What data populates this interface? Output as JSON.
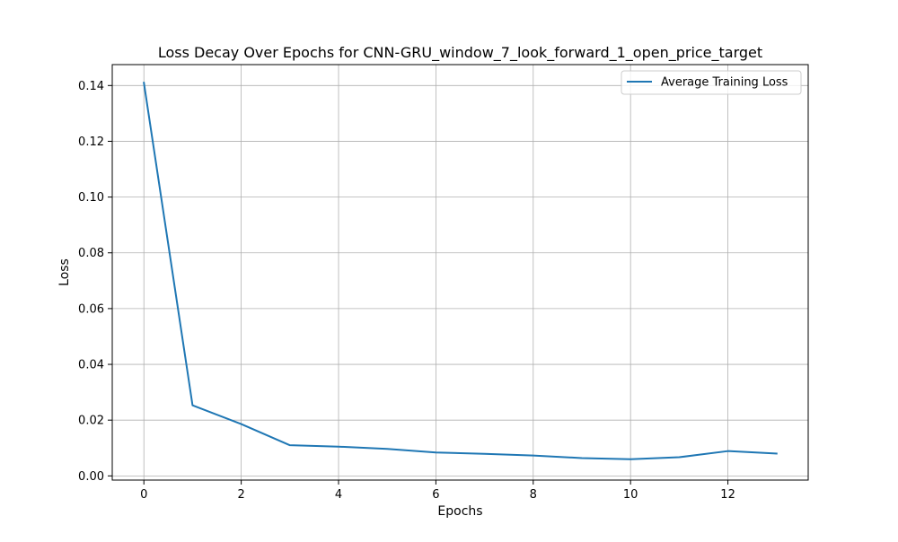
{
  "chart_data": {
    "type": "line",
    "title": "Loss Decay Over Epochs for CNN-GRU_window_7_look_forward_1_open_price_target",
    "xlabel": "Epochs",
    "ylabel": "Loss",
    "xlim": [
      -0.65,
      13.65
    ],
    "ylim": [
      -0.0015,
      0.1475
    ],
    "xticks": [
      0,
      2,
      4,
      6,
      8,
      10,
      12
    ],
    "xtick_labels": [
      "0",
      "2",
      "4",
      "6",
      "8",
      "10",
      "12"
    ],
    "yticks": [
      0.0,
      0.02,
      0.04,
      0.06,
      0.08,
      0.1,
      0.12,
      0.14
    ],
    "ytick_labels": [
      "0.00",
      "0.02",
      "0.04",
      "0.06",
      "0.08",
      "0.10",
      "0.12",
      "0.14"
    ],
    "grid": true,
    "legend_position": "top-right",
    "series": [
      {
        "name": "Average Training Loss",
        "color": "#1f77b4",
        "x": [
          0,
          1,
          2,
          3,
          4,
          5,
          6,
          7,
          8,
          9,
          10,
          11,
          12,
          13
        ],
        "values": [
          0.141,
          0.0253,
          0.0186,
          0.011,
          0.0105,
          0.0097,
          0.0084,
          0.0079,
          0.0073,
          0.0064,
          0.006,
          0.0067,
          0.0089,
          0.008
        ]
      }
    ]
  }
}
